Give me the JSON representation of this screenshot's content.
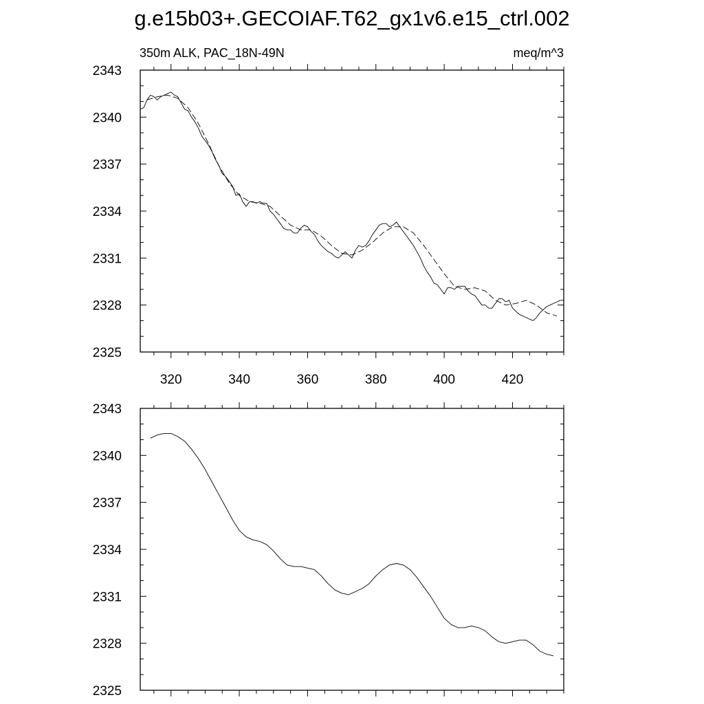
{
  "chart_data": {
    "title": "g.e15b03+.GECOIAF.T62_gx1v6.e15_ctrl.002",
    "panels": [
      {
        "type": "line",
        "left_subtitle": "350m ALK, PAC_18N-49N",
        "right_subtitle": "meq/m^3",
        "xlim": [
          311,
          435
        ],
        "ylim": [
          2325,
          2343
        ],
        "x_ticks": [
          320,
          340,
          360,
          380,
          400,
          420
        ],
        "x_tick_labels": [
          "320",
          "340",
          "360",
          "380",
          "400",
          "420"
        ],
        "y_ticks": [
          2325,
          2328,
          2331,
          2334,
          2337,
          2340,
          2343
        ],
        "y_tick_labels": [
          "2325",
          "2328",
          "2331",
          "2334",
          "2337",
          "2340",
          "2343"
        ],
        "series": [
          {
            "style": "solid",
            "x": [
              311,
              312,
              313,
              314,
              315,
              316,
              317,
              318,
              319,
              320,
              321,
              322,
              323,
              324,
              325,
              326,
              327,
              328,
              329,
              330,
              331,
              332,
              333,
              334,
              335,
              336,
              337,
              338,
              339,
              340,
              341,
              342,
              343,
              344,
              345,
              346,
              347,
              348,
              349,
              350,
              351,
              352,
              353,
              354,
              355,
              356,
              357,
              358,
              359,
              360,
              361,
              362,
              363,
              364,
              365,
              366,
              367,
              368,
              369,
              370,
              371,
              372,
              373,
              374,
              375,
              376,
              377,
              378,
              379,
              380,
              381,
              382,
              383,
              384,
              385,
              386,
              387,
              388,
              389,
              390,
              391,
              392,
              393,
              394,
              395,
              396,
              397,
              398,
              399,
              400,
              401,
              402,
              403,
              404,
              405,
              406,
              407,
              408,
              409,
              410,
              411,
              412,
              413,
              414,
              415,
              416,
              417,
              418,
              419,
              420,
              421,
              422,
              423,
              424,
              425,
              426,
              427,
              428,
              429,
              430,
              431,
              432,
              433,
              434,
              435
            ],
            "y": [
              2340.5,
              2340.6,
              2341.1,
              2341.4,
              2341.3,
              2341.1,
              2341.3,
              2341.4,
              2341.5,
              2341.6,
              2341.4,
              2341.3,
              2340.9,
              2340.5,
              2340.4,
              2340.0,
              2339.7,
              2339.3,
              2338.8,
              2338.5,
              2338.2,
              2337.8,
              2337.3,
              2336.9,
              2336.4,
              2336.2,
              2335.9,
              2335.6,
              2335.0,
              2335.1,
              2334.6,
              2334.3,
              2334.6,
              2334.6,
              2334.5,
              2334.6,
              2334.5,
              2334.5,
              2334.0,
              2333.8,
              2333.5,
              2333.2,
              2332.9,
              2332.8,
              2332.8,
              2332.6,
              2332.6,
              2332.9,
              2333.1,
              2333.0,
              2332.7,
              2332.5,
              2332.1,
              2331.8,
              2331.6,
              2331.4,
              2331.3,
              2331.1,
              2331.0,
              2331.2,
              2331.4,
              2331.2,
              2331.0,
              2331.5,
              2331.8,
              2331.7,
              2331.8,
              2332.1,
              2332.5,
              2332.8,
              2333.1,
              2333.2,
              2333.2,
              2333.0,
              2333.1,
              2333.3,
              2333.0,
              2332.7,
              2332.4,
              2332.1,
              2331.8,
              2331.4,
              2331.0,
              2330.5,
              2330.1,
              2329.8,
              2329.4,
              2329.3,
              2329.0,
              2328.7,
              2329.1,
              2329.1,
              2329.0,
              2329.2,
              2329.2,
              2329.2,
              2328.9,
              2328.7,
              2328.6,
              2328.3,
              2328.0,
              2328.0,
              2327.8,
              2327.8,
              2328.1,
              2328.4,
              2328.4,
              2328.2,
              2328.3,
              2327.8,
              2327.6,
              2327.4,
              2327.3,
              2327.2,
              2327.1,
              2327.0,
              2327.2,
              2327.5,
              2327.7,
              2327.9,
              2328.0,
              2328.1,
              2328.2,
              2328.3,
              2328.3
            ],
            "x_end": 435
          },
          {
            "style": "dashed",
            "x": [
              313,
              316,
              319,
              322,
              325,
              328,
              331,
              334,
              337,
              340,
              343,
              346,
              349,
              352,
              355,
              358,
              361,
              364,
              367,
              370,
              373,
              376,
              379,
              382,
              385,
              388,
              391,
              394,
              397,
              400,
              403,
              406,
              409,
              412,
              415,
              418,
              421,
              424,
              427,
              430,
              433
            ],
            "y": [
              2341.1,
              2341.3,
              2341.4,
              2341.2,
              2340.6,
              2339.6,
              2338.3,
              2336.9,
              2335.8,
              2335.0,
              2334.6,
              2334.5,
              2334.3,
              2333.7,
              2333.1,
              2332.8,
              2332.8,
              2332.4,
              2331.8,
              2331.3,
              2331.2,
              2331.5,
              2332.0,
              2332.6,
              2333.0,
              2333.0,
              2332.6,
              2331.8,
              2330.9,
              2330.0,
              2329.2,
              2329.0,
              2329.1,
              2328.9,
              2328.3,
              2328.0,
              2328.1,
              2328.3,
              2328.0,
              2327.5,
              2327.3
            ]
          }
        ]
      },
      {
        "type": "line",
        "xlim": [
          311,
          435
        ],
        "ylim": [
          2325,
          2343
        ],
        "x_ticks": [
          320,
          340,
          360,
          380,
          400,
          420
        ],
        "y_ticks": [
          2325,
          2328,
          2331,
          2334,
          2337,
          2340,
          2343
        ],
        "y_tick_labels": [
          "2325",
          "2328",
          "2331",
          "2334",
          "2337",
          "2340",
          "2343"
        ],
        "series": [
          {
            "style": "solid",
            "x": [
              314,
              316,
              318,
              320,
              322,
              324,
              326,
              328,
              330,
              332,
              334,
              336,
              338,
              340,
              342,
              344,
              346,
              348,
              350,
              352,
              354,
              356,
              358,
              360,
              362,
              364,
              366,
              368,
              370,
              372,
              374,
              376,
              378,
              380,
              382,
              384,
              386,
              388,
              390,
              392,
              394,
              396,
              398,
              400,
              402,
              404,
              406,
              408,
              410,
              412,
              414,
              416,
              418,
              420,
              422,
              424,
              426,
              428,
              430,
              432
            ],
            "y": [
              2341.1,
              2341.3,
              2341.4,
              2341.4,
              2341.2,
              2340.9,
              2340.4,
              2339.8,
              2339.1,
              2338.3,
              2337.5,
              2336.7,
              2335.9,
              2335.2,
              2334.8,
              2334.6,
              2334.5,
              2334.3,
              2333.9,
              2333.4,
              2333.0,
              2332.9,
              2332.9,
              2332.8,
              2332.7,
              2332.3,
              2331.8,
              2331.4,
              2331.2,
              2331.1,
              2331.3,
              2331.5,
              2331.8,
              2332.3,
              2332.7,
              2333.0,
              2333.1,
              2333.0,
              2332.7,
              2332.2,
              2331.6,
              2331.0,
              2330.3,
              2329.6,
              2329.2,
              2329.0,
              2329.0,
              2329.1,
              2329.0,
              2328.8,
              2328.4,
              2328.1,
              2328.0,
              2328.1,
              2328.2,
              2328.2,
              2327.9,
              2327.5,
              2327.3,
              2327.2
            ]
          }
        ]
      }
    ]
  }
}
